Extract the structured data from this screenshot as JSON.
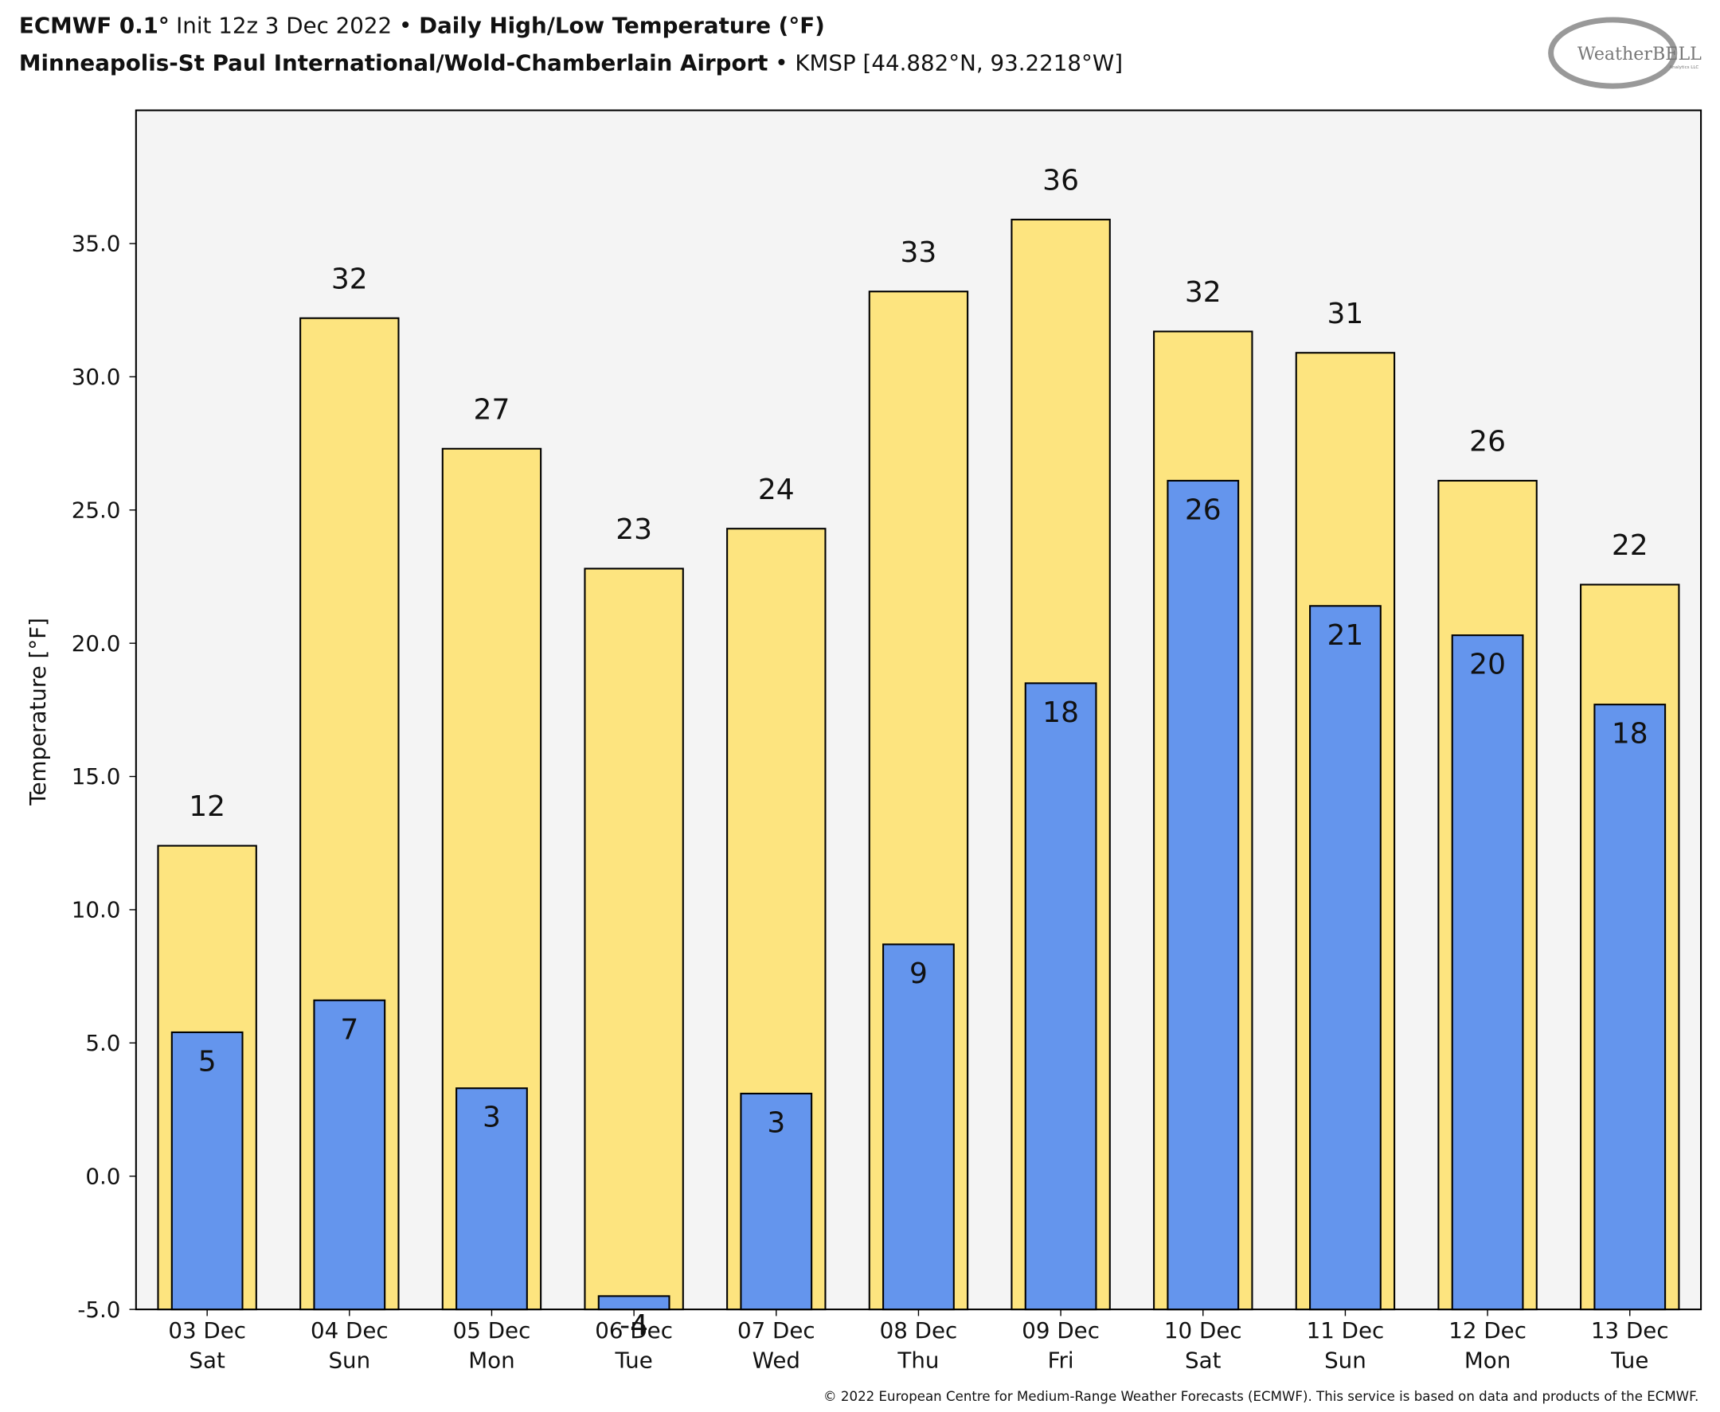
{
  "chart_data": {
    "type": "bar",
    "title": [
      "ECMWF 0.1°",
      "Init 12z 3 Dec 2022 • ",
      "Daily High/Low Temperature (°F)"
    ],
    "subtitle": [
      "Minneapolis-St Paul International/Wold-Chamberlain Airport",
      " • KMSP [44.882°N, 93.2218°W]"
    ],
    "logo": [
      "WeatherBELL",
      "Analytics LLC"
    ],
    "footer": "© 2022 European Centre for Medium-Range Weather Forecasts (ECMWF). This service is based on data and products of the ECMWF.",
    "y_label": "Temperature [°F]",
    "categories": [
      [
        "03 Dec",
        "Sat"
      ],
      [
        "04 Dec",
        "Sun"
      ],
      [
        "05 Dec",
        "Mon"
      ],
      [
        "06 Dec",
        "Tue"
      ],
      [
        "07 Dec",
        "Wed"
      ],
      [
        "08 Dec",
        "Thu"
      ],
      [
        "09 Dec",
        "Fri"
      ],
      [
        "10 Dec",
        "Sat"
      ],
      [
        "11 Dec",
        "Sun"
      ],
      [
        "12 Dec",
        "Mon"
      ],
      [
        "13 Dec",
        "Tue"
      ]
    ],
    "series": [
      {
        "name": "High",
        "color": "#fde47f",
        "values": [
          12.4,
          32.2,
          27.3,
          22.8,
          24.3,
          33.2,
          35.9,
          31.7,
          30.9,
          26.1,
          22.2
        ],
        "value_labels": [
          "12",
          "32",
          "27",
          "23",
          "24",
          "33",
          "36",
          "32",
          "31",
          "26",
          "22"
        ]
      },
      {
        "name": "Low",
        "color": "#6495ed",
        "values": [
          5.4,
          6.6,
          3.3,
          -4.5,
          3.1,
          8.7,
          18.5,
          26.1,
          21.4,
          20.3,
          17.7
        ],
        "value_labels": [
          "5",
          "7",
          "3",
          "-4",
          "3",
          "9",
          "18",
          "26",
          "21",
          "20",
          "18"
        ]
      }
    ],
    "ylim": [
      -5,
      40
    ],
    "yticks": [
      {
        "value": -5,
        "label": "-5.0"
      },
      {
        "value": 0,
        "label": "0.0"
      },
      {
        "value": 5,
        "label": "5.0"
      },
      {
        "value": 10,
        "label": "10.0"
      },
      {
        "value": 15,
        "label": "15.0"
      },
      {
        "value": 20,
        "label": "20.0"
      },
      {
        "value": 25,
        "label": "25.0"
      },
      {
        "value": 30,
        "label": "30.0"
      },
      {
        "value": 35,
        "label": "35.0"
      }
    ],
    "grid": false
  }
}
